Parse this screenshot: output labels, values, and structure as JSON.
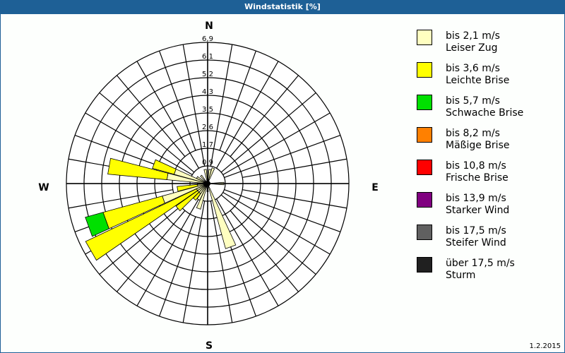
{
  "window": {
    "title": "Windstatistik [%]",
    "date": "1.2.2015"
  },
  "compass": {
    "N": "N",
    "E": "E",
    "S": "S",
    "W": "W"
  },
  "legend": [
    {
      "range": "bis 2,1 m/s",
      "name": "Leiser Zug",
      "color": "#ffffc0"
    },
    {
      "range": "bis 3,6 m/s",
      "name": "Leichte Brise",
      "color": "#ffff00"
    },
    {
      "range": "bis 5,7 m/s",
      "name": "Schwache Brise",
      "color": "#00e000"
    },
    {
      "range": "bis 8,2 m/s",
      "name": "Mäßige Brise",
      "color": "#ff8000"
    },
    {
      "range": "bis 10,8 m/s",
      "name": "Frische Brise",
      "color": "#ff0000"
    },
    {
      "range": "bis 13,9 m/s",
      "name": "Starker Wind",
      "color": "#800080"
    },
    {
      "range": "bis 17,5 m/s",
      "name": "Steifer Wind",
      "color": "#606060"
    },
    {
      "range": "über 17,5 m/s",
      "name": "Sturm",
      "color": "#202020"
    }
  ],
  "chart_data": {
    "type": "wind-rose",
    "title": "Windstatistik [%]",
    "unit": "%",
    "ring_labels": [
      "0,9",
      "1,7",
      "2,6",
      "3,5",
      "4,3",
      "5,2",
      "6,1",
      "6,9"
    ],
    "rmax": 6.9,
    "directions_deg_step": 10,
    "series": [
      "Leiser Zug",
      "Leichte Brise",
      "Schwache Brise",
      "Mäßige Brise",
      "Frische Brise",
      "Starker Wind",
      "Steifer Wind",
      "Sturm"
    ],
    "petals": [
      {
        "dir": 350,
        "values": [
          0.7,
          0,
          0,
          0,
          0,
          0,
          0,
          0
        ]
      },
      {
        "dir": 10,
        "values": [
          0.7,
          0,
          0,
          0,
          0,
          0,
          0,
          0
        ]
      },
      {
        "dir": 20,
        "values": [
          0.8,
          0,
          0,
          0,
          0,
          0,
          0,
          0
        ]
      },
      {
        "dir": 90,
        "values": [
          0.8,
          0,
          0,
          0,
          0,
          0,
          0,
          0
        ]
      },
      {
        "dir": 160,
        "values": [
          3.3,
          0,
          0,
          0,
          0,
          0,
          0,
          0
        ]
      },
      {
        "dir": 180,
        "values": [
          0.4,
          0,
          0,
          0,
          0,
          0,
          0,
          0
        ]
      },
      {
        "dir": 200,
        "values": [
          1.3,
          0,
          0,
          0,
          0,
          0,
          0,
          0
        ]
      },
      {
        "dir": 210,
        "values": [
          0.9,
          0,
          0,
          0,
          0,
          0,
          0,
          0
        ]
      },
      {
        "dir": 220,
        "values": [
          0.6,
          0.4,
          0,
          0,
          0,
          0,
          0,
          0
        ]
      },
      {
        "dir": 230,
        "values": [
          0.6,
          1.3,
          0,
          0,
          0,
          0,
          0,
          0
        ]
      },
      {
        "dir": 240,
        "values": [
          0.6,
          6.0,
          0,
          0,
          0,
          0,
          0,
          0
        ]
      },
      {
        "dir": 250,
        "values": [
          2.3,
          3.0,
          0.9,
          0,
          0,
          0,
          0,
          0
        ]
      },
      {
        "dir": 260,
        "values": [
          0.5,
          1.0,
          0,
          0,
          0,
          0,
          0,
          0
        ]
      },
      {
        "dir": 270,
        "values": [
          0.5,
          0,
          0,
          0,
          0,
          0,
          0,
          0
        ]
      },
      {
        "dir": 280,
        "values": [
          2.0,
          2.9,
          0,
          0,
          0,
          0,
          0,
          0
        ]
      },
      {
        "dir": 290,
        "values": [
          1.7,
          1.1,
          0,
          0,
          0,
          0,
          0,
          0
        ]
      },
      {
        "dir": 300,
        "values": [
          0.6,
          0,
          0,
          0,
          0,
          0,
          0,
          0
        ]
      },
      {
        "dir": 320,
        "values": [
          0.5,
          0,
          0,
          0,
          0,
          0,
          0,
          0
        ]
      }
    ]
  }
}
